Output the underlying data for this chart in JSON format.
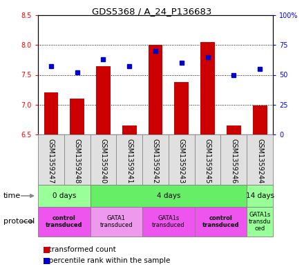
{
  "title": "GDS5368 / A_24_P136683",
  "samples": [
    "GSM1359247",
    "GSM1359248",
    "GSM1359240",
    "GSM1359241",
    "GSM1359242",
    "GSM1359243",
    "GSM1359245",
    "GSM1359246",
    "GSM1359244"
  ],
  "red_values": [
    7.2,
    7.1,
    7.65,
    6.65,
    8.0,
    7.38,
    8.05,
    6.65,
    6.98
  ],
  "blue_values": [
    57,
    52,
    63,
    57,
    70,
    60,
    65,
    50,
    55
  ],
  "ylim": [
    6.5,
    8.5
  ],
  "y2lim": [
    0,
    100
  ],
  "yticks": [
    6.5,
    7.0,
    7.5,
    8.0,
    8.5
  ],
  "y2ticks": [
    0,
    25,
    50,
    75,
    100
  ],
  "y2ticklabels": [
    "0",
    "25",
    "50",
    "75",
    "100%"
  ],
  "bar_color": "#cc0000",
  "dot_color": "#0000cc",
  "bar_bottom": 6.5,
  "time_groups": [
    {
      "label": "0 days",
      "start": 0,
      "end": 2,
      "color": "#99ff99"
    },
    {
      "label": "4 days",
      "start": 2,
      "end": 8,
      "color": "#66ee66"
    },
    {
      "label": "14 days",
      "start": 8,
      "end": 9,
      "color": "#99ff99"
    }
  ],
  "protocol_groups": [
    {
      "label": "control\ntransduced",
      "start": 0,
      "end": 2,
      "color": "#ee55ee",
      "bold": true
    },
    {
      "label": "GATA1\ntransduced",
      "start": 2,
      "end": 4,
      "color": "#ee99ee",
      "bold": false
    },
    {
      "label": "GATA1s\ntransduced",
      "start": 4,
      "end": 6,
      "color": "#ee55ee",
      "bold": false
    },
    {
      "label": "control\ntransduced",
      "start": 6,
      "end": 8,
      "color": "#ee55ee",
      "bold": true
    },
    {
      "label": "GATA1s\ntransdu\nced",
      "start": 8,
      "end": 9,
      "color": "#99ff99",
      "bold": false
    }
  ]
}
